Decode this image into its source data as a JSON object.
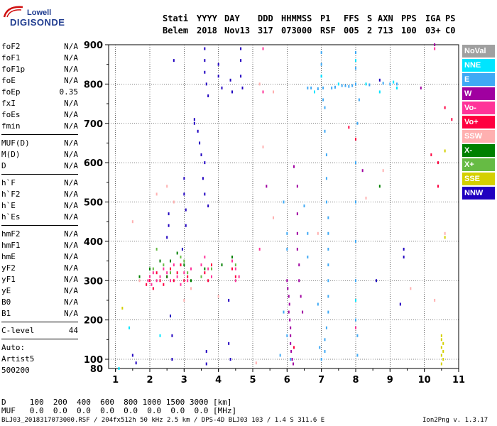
{
  "logo": {
    "line1": "Lowell",
    "line2": "DIGISONDE"
  },
  "header": {
    "labels": [
      "Stati",
      "YYYY",
      "DAY",
      "DDD",
      "HHMMSS",
      "P1",
      "FFS",
      "S",
      "AXN",
      "PPS",
      "IGA",
      "PS"
    ],
    "values": [
      "Belem",
      "2018",
      "Nov13",
      "317",
      "073000",
      "RSF",
      "005",
      "2",
      "713",
      "100",
      "03+",
      "C0"
    ]
  },
  "params_groups": [
    [
      {
        "name": "foF2",
        "value": "N/A"
      },
      {
        "name": "foF1",
        "value": "N/A"
      },
      {
        "name": "foF1p",
        "value": "N/A"
      },
      {
        "name": "foE",
        "value": "N/A"
      },
      {
        "name": "foEp",
        "value": "0.35"
      },
      {
        "name": "fxI",
        "value": "N/A"
      },
      {
        "name": "foEs",
        "value": "N/A"
      },
      {
        "name": "fmin",
        "value": "N/A"
      }
    ],
    [
      {
        "name": "MUF(D)",
        "value": "N/A"
      },
      {
        "name": "M(D)",
        "value": "N/A"
      },
      {
        "name": "D",
        "value": "N/A"
      }
    ],
    [
      {
        "name": "h`F",
        "value": "N/A"
      },
      {
        "name": "h`F2",
        "value": "N/A"
      },
      {
        "name": "h`E",
        "value": "N/A"
      },
      {
        "name": "h`Es",
        "value": "N/A"
      }
    ],
    [
      {
        "name": "hmF2",
        "value": "N/A"
      },
      {
        "name": "hmF1",
        "value": "N/A"
      },
      {
        "name": "hmE",
        "value": "N/A"
      },
      {
        "name": "yF2",
        "value": "N/A"
      },
      {
        "name": "yF1",
        "value": "N/A"
      },
      {
        "name": "yE",
        "value": "N/A"
      },
      {
        "name": "B0",
        "value": "N/A"
      },
      {
        "name": "B1",
        "value": "N/A"
      }
    ],
    [
      {
        "name": "C-level",
        "value": "44"
      }
    ]
  ],
  "auto": {
    "line1": "Auto:",
    "line2": "Artist5",
    "line3": "500200"
  },
  "legend": [
    {
      "name": "NoVal",
      "color": "#a0a0a0"
    },
    {
      "name": "NNE",
      "color": "#00e5ff"
    },
    {
      "name": "E",
      "color": "#3fa9f5"
    },
    {
      "name": "W",
      "color": "#a000a0"
    },
    {
      "name": "Vo-",
      "color": "#ff3399"
    },
    {
      "name": "Vo+",
      "color": "#ff0040"
    },
    {
      "name": "SSW",
      "color": "#ffb0b0"
    },
    {
      "name": "X-",
      "color": "#008000"
    },
    {
      "name": "X+",
      "color": "#66bb44"
    },
    {
      "name": "SSE",
      "color": "#d4d000"
    },
    {
      "name": "NNW",
      "color": "#2000c0"
    }
  ],
  "footer": {
    "d_row": "D     100  200  400  600  800 1000 1500 3000 [km]",
    "muf_row": "MUF   0.0  0.0  0.0  0.0  0.0  0.0  0.0  0.0 [MHz]",
    "info": "BLJ03_2018317073000.RSF / 204fx512h 50 kHz 2.5 km / DPS-4D BLJ03 103 / 1.4 S 311.6 E",
    "version": "Ion2Png v. 1.3.17"
  },
  "chart_data": {
    "type": "scatter",
    "x_label": "",
    "y_label": "",
    "x_ticks": [
      "1",
      "2",
      "3",
      "4",
      "5",
      "6",
      "7",
      "8",
      "9",
      "10",
      "11"
    ],
    "y_ticks": [
      "80",
      "100",
      "200",
      "300",
      "400",
      "500",
      "600",
      "700",
      "800",
      "900"
    ],
    "xlim": [
      0.8,
      11
    ],
    "ylim": [
      80,
      900
    ],
    "series": [
      {
        "color_key": "NNW",
        "points": [
          [
            3.6,
            890
          ],
          [
            3.6,
            860
          ],
          [
            3.6,
            830
          ],
          [
            3.65,
            800
          ],
          [
            3.7,
            770
          ],
          [
            3.4,
            680
          ],
          [
            3.45,
            650
          ],
          [
            3.5,
            620
          ],
          [
            3.6,
            600
          ],
          [
            3.55,
            560
          ],
          [
            3.6,
            520
          ],
          [
            3.7,
            490
          ],
          [
            3.3,
            700
          ],
          [
            2.7,
            860
          ],
          [
            2.55,
            470
          ],
          [
            2.55,
            440
          ],
          [
            2.5,
            410
          ],
          [
            3.0,
            560
          ],
          [
            3.0,
            520
          ],
          [
            3.05,
            480
          ],
          [
            3.05,
            440
          ],
          [
            2.6,
            210
          ],
          [
            2.65,
            160
          ],
          [
            2.65,
            100
          ],
          [
            4.0,
            850
          ],
          [
            4.0,
            820
          ],
          [
            4.1,
            790
          ],
          [
            4.35,
            810
          ],
          [
            4.4,
            780
          ],
          [
            4.65,
            890
          ],
          [
            4.65,
            860
          ],
          [
            4.65,
            820
          ],
          [
            4.7,
            790
          ],
          [
            4.3,
            250
          ],
          [
            4.35,
            100
          ],
          [
            4.3,
            140
          ],
          [
            3.65,
            120
          ],
          [
            3.65,
            90
          ],
          [
            1.5,
            110
          ],
          [
            1.6,
            92
          ],
          [
            8.7,
            810
          ],
          [
            9.4,
            380
          ],
          [
            9.4,
            360
          ],
          [
            9.3,
            240
          ],
          [
            8.6,
            300
          ],
          [
            3.3,
            710
          ],
          [
            2.95,
            380
          ]
        ]
      },
      {
        "color_key": "E",
        "points": [
          [
            7.0,
            880
          ],
          [
            7.0,
            850
          ],
          [
            7.0,
            820
          ],
          [
            7.05,
            790
          ],
          [
            7.05,
            760
          ],
          [
            7.1,
            740
          ],
          [
            7.1,
            680
          ],
          [
            7.15,
            620
          ],
          [
            7.15,
            560
          ],
          [
            7.15,
            500
          ],
          [
            7.2,
            460
          ],
          [
            7.2,
            420
          ],
          [
            7.2,
            380
          ],
          [
            7.2,
            340
          ],
          [
            7.2,
            300
          ],
          [
            7.2,
            260
          ],
          [
            7.2,
            220
          ],
          [
            7.15,
            180
          ],
          [
            7.1,
            150
          ],
          [
            7.1,
            120
          ],
          [
            7.0,
            100
          ],
          [
            6.6,
            790
          ],
          [
            6.7,
            790
          ],
          [
            6.9,
            788
          ],
          [
            7.3,
            790
          ],
          [
            7.4,
            792
          ],
          [
            7.6,
            796
          ],
          [
            7.7,
            796
          ],
          [
            7.8,
            794
          ],
          [
            7.9,
            796
          ],
          [
            8.0,
            800
          ],
          [
            8.0,
            880
          ],
          [
            8.0,
            840
          ],
          [
            8.1,
            760
          ],
          [
            8.05,
            700
          ],
          [
            8.0,
            600
          ],
          [
            8.0,
            500
          ],
          [
            8.0,
            400
          ],
          [
            8.0,
            300
          ],
          [
            8.0,
            200
          ],
          [
            8.05,
            160
          ],
          [
            8.05,
            110
          ],
          [
            8.4,
            798
          ],
          [
            8.8,
            802
          ],
          [
            9.0,
            800
          ],
          [
            9.2,
            800
          ],
          [
            5.9,
            500
          ],
          [
            6.0,
            420
          ],
          [
            6.0,
            380
          ],
          [
            5.9,
            220
          ],
          [
            6.0,
            160
          ],
          [
            6.1,
            100
          ],
          [
            6.5,
            490
          ],
          [
            6.6,
            420
          ],
          [
            6.6,
            360
          ],
          [
            5.8,
            110
          ],
          [
            6.9,
            240
          ],
          [
            6.95,
            130
          ]
        ]
      },
      {
        "color_key": "W",
        "points": [
          [
            6.0,
            300
          ],
          [
            6.02,
            280
          ],
          [
            6.05,
            260
          ],
          [
            6.07,
            240
          ],
          [
            6.05,
            220
          ],
          [
            6.08,
            200
          ],
          [
            6.1,
            180
          ],
          [
            6.1,
            160
          ],
          [
            6.1,
            140
          ],
          [
            6.12,
            120
          ],
          [
            6.15,
            100
          ],
          [
            6.18,
            90
          ],
          [
            6.3,
            420
          ],
          [
            6.3,
            380
          ],
          [
            6.35,
            340
          ],
          [
            6.35,
            300
          ],
          [
            6.4,
            260
          ],
          [
            6.45,
            220
          ],
          [
            6.3,
            540
          ],
          [
            6.2,
            590
          ],
          [
            5.4,
            540
          ],
          [
            6.3,
            470
          ],
          [
            10.3,
            900
          ],
          [
            9.9,
            790
          ],
          [
            8.2,
            580
          ]
        ]
      },
      {
        "color_key": "Vo-",
        "points": [
          [
            1.95,
            300
          ],
          [
            2.0,
            310
          ],
          [
            2.05,
            290
          ],
          [
            2.1,
            320
          ],
          [
            2.2,
            300
          ],
          [
            2.3,
            310
          ],
          [
            2.4,
            330
          ],
          [
            2.5,
            320
          ],
          [
            2.6,
            300
          ],
          [
            2.7,
            340
          ],
          [
            2.8,
            310
          ],
          [
            2.9,
            290
          ],
          [
            3.0,
            320
          ],
          [
            3.1,
            300
          ],
          [
            3.2,
            330
          ],
          [
            3.5,
            340
          ],
          [
            3.6,
            360
          ],
          [
            3.7,
            330
          ],
          [
            3.8,
            310
          ],
          [
            4.4,
            350
          ],
          [
            4.5,
            330
          ],
          [
            4.6,
            310
          ],
          [
            4.5,
            300
          ],
          [
            5.2,
            380
          ],
          [
            5.3,
            890
          ],
          [
            5.3,
            780
          ],
          [
            8.0,
            180
          ],
          [
            10.3,
            890
          ]
        ]
      },
      {
        "color_key": "Vo+",
        "points": [
          [
            1.9,
            290
          ],
          [
            2.0,
            300
          ],
          [
            2.1,
            280
          ],
          [
            2.2,
            320
          ],
          [
            2.3,
            300
          ],
          [
            2.4,
            290
          ],
          [
            2.5,
            310
          ],
          [
            2.6,
            330
          ],
          [
            2.7,
            300
          ],
          [
            2.8,
            320
          ],
          [
            2.9,
            340
          ],
          [
            3.0,
            300
          ],
          [
            3.1,
            310
          ],
          [
            3.6,
            320
          ],
          [
            3.7,
            300
          ],
          [
            3.8,
            340
          ],
          [
            4.4,
            330
          ],
          [
            4.5,
            310
          ],
          [
            6.2,
            130
          ],
          [
            7.8,
            690
          ],
          [
            8.0,
            660
          ],
          [
            10.2,
            620
          ],
          [
            10.4,
            600
          ],
          [
            10.8,
            710
          ],
          [
            10.6,
            740
          ],
          [
            10.4,
            540
          ]
        ]
      },
      {
        "color_key": "SSW",
        "points": [
          [
            2.2,
            520
          ],
          [
            2.5,
            540
          ],
          [
            2.7,
            500
          ],
          [
            1.5,
            450
          ],
          [
            1.7,
            300
          ],
          [
            3.2,
            280
          ],
          [
            5.6,
            780
          ],
          [
            5.2,
            800
          ],
          [
            5.3,
            640
          ],
          [
            5.6,
            460
          ],
          [
            8.3,
            510
          ],
          [
            8.8,
            580
          ],
          [
            9.6,
            280
          ],
          [
            10.6,
            420
          ],
          [
            10.3,
            250
          ],
          [
            6.9,
            420
          ],
          [
            3.0,
            250
          ],
          [
            4.0,
            260
          ],
          [
            5.1,
            92
          ]
        ]
      },
      {
        "color_key": "X-",
        "points": [
          [
            2.0,
            330
          ],
          [
            2.5,
            310
          ],
          [
            2.6,
            350
          ],
          [
            2.8,
            370
          ],
          [
            3.0,
            340
          ],
          [
            3.2,
            300
          ],
          [
            3.6,
            330
          ],
          [
            4.1,
            340
          ],
          [
            4.4,
            360
          ],
          [
            1.7,
            310
          ],
          [
            8.7,
            540
          ],
          [
            2.3,
            350
          ]
        ]
      },
      {
        "color_key": "X+",
        "points": [
          [
            2.1,
            330
          ],
          [
            2.4,
            340
          ],
          [
            2.6,
            320
          ],
          [
            2.9,
            360
          ],
          [
            3.0,
            350
          ],
          [
            3.1,
            320
          ],
          [
            3.5,
            310
          ],
          [
            3.8,
            330
          ],
          [
            4.5,
            340
          ],
          [
            2.2,
            380
          ]
        ]
      },
      {
        "color_key": "SSE",
        "points": [
          [
            10.5,
            160
          ],
          [
            10.5,
            150
          ],
          [
            10.55,
            140
          ],
          [
            10.5,
            130
          ],
          [
            10.55,
            120
          ],
          [
            10.5,
            110
          ],
          [
            10.55,
            100
          ],
          [
            10.5,
            90
          ],
          [
            10.6,
            410
          ],
          [
            10.6,
            630
          ],
          [
            1.2,
            230
          ]
        ]
      },
      {
        "color_key": "NNE",
        "points": [
          [
            7.0,
            820
          ],
          [
            8.0,
            860
          ],
          [
            7.5,
            800
          ],
          [
            6.8,
            780
          ],
          [
            8.7,
            780
          ],
          [
            9.2,
            790
          ],
          [
            2.3,
            160
          ],
          [
            1.4,
            180
          ],
          [
            1.1,
            80
          ],
          [
            8.0,
            250
          ],
          [
            8.3,
            800
          ],
          [
            9.1,
            805
          ]
        ]
      }
    ]
  }
}
